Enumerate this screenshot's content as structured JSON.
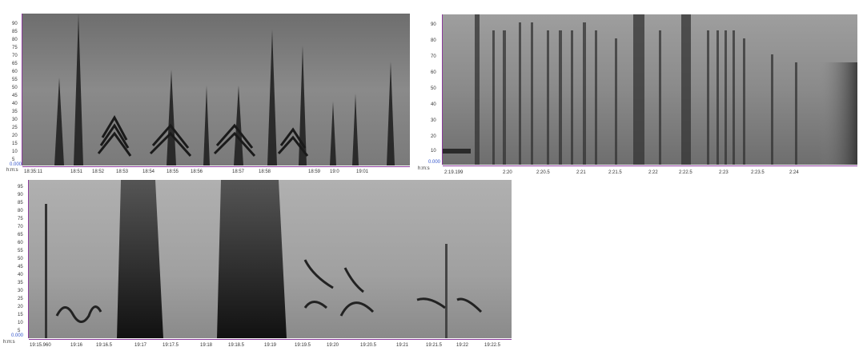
{
  "panel_a": {
    "y_ticks": [
      "90",
      "85",
      "80",
      "75",
      "70",
      "65",
      "60",
      "55",
      "50",
      "45",
      "40",
      "35",
      "30",
      "25",
      "20",
      "15",
      "10",
      "5"
    ],
    "y_unit": "kHz",
    "x_ticks": [
      "18:35:11",
      "18:51",
      "18:52",
      "18:53",
      "18:54",
      "18:55",
      "18:56",
      "18:57",
      "18:58",
      "18:59",
      "19:0",
      "19:01"
    ],
    "zero_label": "0.000",
    "time_label": "h:m:s"
  },
  "panel_b": {
    "y_ticks": [
      "90",
      "80",
      "70",
      "60",
      "50",
      "40",
      "30",
      "20",
      "10"
    ],
    "y_unit": "kHz",
    "x_ticks": [
      "2:19.199",
      "2:20",
      "2:20.5",
      "2:21",
      "2:21.5",
      "2:22",
      "2:22.5",
      "2:23",
      "2:23.5",
      "2:24"
    ],
    "zero_label": "0.000",
    "time_label": "h:m:s"
  },
  "panel_c": {
    "y_ticks": [
      "95",
      "90",
      "85",
      "80",
      "75",
      "70",
      "65",
      "60",
      "55",
      "50",
      "45",
      "40",
      "35",
      "30",
      "25",
      "20",
      "15",
      "10",
      "5"
    ],
    "y_unit": "kHz",
    "x_ticks": [
      "19:15.960",
      "19:16",
      "19:16.5",
      "19:17",
      "19:17.5",
      "19:18",
      "19:18.5",
      "19:19",
      "19:19.5",
      "19:20",
      "19:20.5",
      "19:21",
      "19:21.5",
      "19:22",
      "19:22.5"
    ],
    "zero_label": "0.000",
    "time_label": "h:m:s"
  },
  "colors": {
    "axis": "#8b3a9c",
    "background": "#9a9a9a",
    "corner_label": "#3355cc"
  }
}
